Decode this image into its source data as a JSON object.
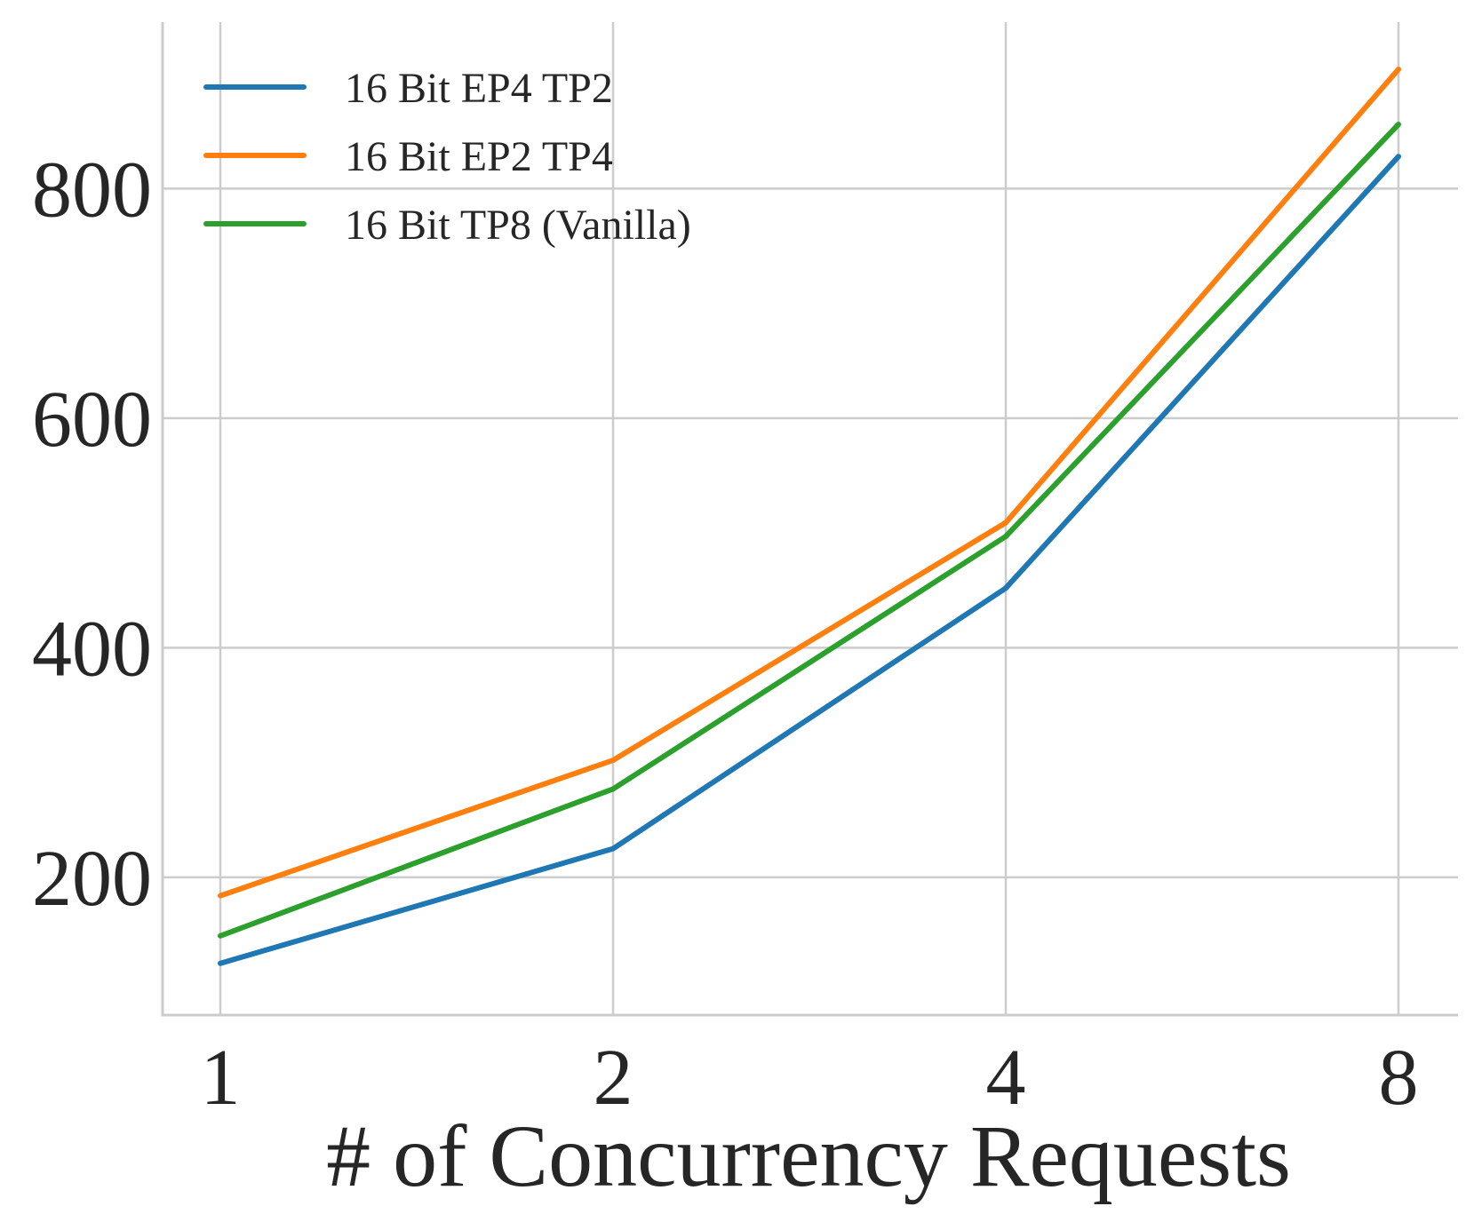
{
  "chart_data": {
    "type": "line",
    "title": "",
    "xlabel": "# of Concurrency Requests",
    "ylabel": "",
    "x": [
      1,
      2,
      4,
      8
    ],
    "x_scale": "log2",
    "xticks": [
      "1",
      "2",
      "4",
      "8"
    ],
    "yticks": [
      "200",
      "400",
      "600",
      "800"
    ],
    "ylim": [
      80,
      945
    ],
    "grid": true,
    "legend_position": "top-left",
    "series": [
      {
        "name": "16 Bit EP4 TP2",
        "color": "#1f77b4",
        "values": [
          125,
          225,
          452,
          828
        ]
      },
      {
        "name": "16 Bit EP2 TP4",
        "color": "#ff7f0e",
        "values": [
          184,
          302,
          509,
          904
        ]
      },
      {
        "name": "16 Bit TP8 (Vanilla)",
        "color": "#2ca02c",
        "values": [
          149,
          277,
          497,
          856
        ]
      }
    ]
  }
}
